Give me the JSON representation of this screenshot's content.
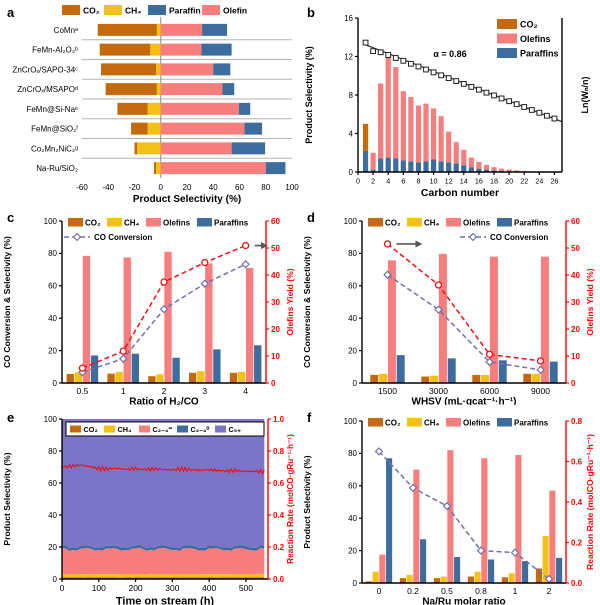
{
  "colors": {
    "co2": "#C4690E",
    "ch4": "#F3C116",
    "olefins": "#F87D7D",
    "paraffins": "#3D6D9E",
    "c5plus": "#7C74C8",
    "co_conv": "#7070B0",
    "red_line": "#EE1111",
    "axis_red": "#FF0000",
    "separator": "#B3B3B3",
    "zero_line": "#8A8A8A",
    "asf_fit": "#3A3A3A",
    "arrow": "#555555"
  },
  "chart_data": [
    {
      "id": "a",
      "letter": "a",
      "type": "bar",
      "variant": "horizontal-diverging",
      "xlabel": "Product Selectivity (%)",
      "xlim": [
        -60,
        100
      ],
      "xticks": [
        -60,
        -40,
        -20,
        0,
        20,
        40,
        60,
        80,
        100
      ],
      "legend": [
        {
          "label": "CO₂",
          "color": "co2"
        },
        {
          "label": "CH₄",
          "color": "ch4"
        },
        {
          "label": "Paraffin",
          "color": "paraffins"
        },
        {
          "label": "Olefin",
          "color": "olefins"
        }
      ],
      "categories": [
        "CoMnᵃ",
        "FeMn-Al₂O₃ᵇ",
        "ZnCrOₓ/SAPO-34ᶜ",
        "ZnCrOₓ/MSAPOᵈ",
        "FeMn@Si-Naᵉ",
        "FeMn@SiO₂ᶠ",
        "Co₂Mn₂NiC₂ᵍ",
        "Na-Ru/SiO₂"
      ],
      "series": [
        {
          "name": "CO₂",
          "color": "co2",
          "side": "left",
          "values": [
            45,
            38.5,
            42,
            39,
            23,
            12.6,
            2,
            1.5
          ]
        },
        {
          "name": "CH₄",
          "color": "ch4",
          "side": "left",
          "values": [
            3,
            8,
            3.5,
            3,
            10,
            10,
            18,
            3.6
          ]
        },
        {
          "name": "Olefin",
          "color": "olefins",
          "side": "right",
          "values": [
            31.5,
            31,
            40,
            47,
            59.5,
            63.7,
            54,
            80
          ]
        },
        {
          "name": "Paraffin",
          "color": "paraffins",
          "side": "right",
          "values": [
            19,
            23,
            13,
            9,
            8.7,
            13.5,
            25.5,
            15
          ]
        }
      ]
    },
    {
      "id": "b",
      "letter": "b",
      "type": "bar+scatter",
      "xlabel": "Carbon number",
      "ylabel": "Product Selectivity (%)",
      "y2label": "Ln(Wₙ/n)",
      "ylim": [
        0,
        16
      ],
      "yticks": [
        0,
        4,
        8,
        12,
        16
      ],
      "xticks": [
        0,
        2,
        4,
        6,
        8,
        10,
        12,
        14,
        16,
        18,
        20,
        22,
        24,
        26
      ],
      "x": [
        1,
        2,
        3,
        4,
        5,
        6,
        7,
        8,
        9,
        10,
        11,
        12,
        13,
        14,
        15,
        16,
        17,
        18,
        19,
        20,
        21,
        22,
        23,
        24,
        25,
        26
      ],
      "legend": [
        {
          "label": "CO₂",
          "color": "co2"
        },
        {
          "label": "Olefins",
          "color": "olefins"
        },
        {
          "label": "Paraffins",
          "color": "paraffins"
        }
      ],
      "series": [
        {
          "name": "Paraffins",
          "color": "paraffins",
          "values": [
            2.2,
            0.2,
            1.4,
            1.5,
            1.4,
            1.2,
            1.1,
            1.0,
            1.1,
            1.3,
            1.1,
            1.0,
            0.9,
            0.7,
            0.5,
            0.35,
            0.25,
            0.15,
            0.1,
            0.07,
            0.05,
            0.03,
            0.02,
            0.02,
            0.01,
            0.01
          ]
        },
        {
          "name": "Olefins",
          "color": "olefins",
          "values": [
            0,
            1.8,
            7.8,
            10.6,
            9.5,
            7.2,
            6.7,
            5.9,
            6.0,
            5.3,
            4.7,
            3.2,
            2.2,
            1.6,
            1.0,
            0.7,
            0.5,
            0.35,
            0.25,
            0.18,
            0.12,
            0.08,
            0.05,
            0.03,
            0.02,
            0.01
          ]
        },
        {
          "name": "CO₂",
          "color": "co2",
          "values": [
            2.8,
            0,
            0,
            0,
            0,
            0,
            0,
            0,
            0,
            0,
            0,
            0,
            0,
            0,
            0,
            0,
            0,
            0,
            0,
            0,
            0,
            0,
            0,
            0,
            0,
            0
          ]
        }
      ],
      "asf": {
        "label": "α = 0.86",
        "axis_range": [
          -7.4,
          -0.2
        ],
        "ln_values": [
          -1.35,
          -1.75,
          -1.8,
          -1.93,
          -2.07,
          -2.2,
          -2.34,
          -2.47,
          -2.61,
          -2.74,
          -2.88,
          -3.01,
          -3.15,
          -3.28,
          -3.42,
          -3.55,
          -3.69,
          -3.82,
          -3.96,
          -4.09,
          -4.23,
          -4.36,
          -4.5,
          -4.63,
          -4.77,
          -4.9
        ],
        "fit": [
          [
            1,
            -1.45
          ],
          [
            27,
            -5.05
          ]
        ]
      }
    },
    {
      "id": "c",
      "letter": "c",
      "type": "grouped-bar+lines",
      "xlabel": "Ratio of H₂/CO",
      "ylabel": "CO Conversion & Selectivity (%)",
      "y2label": "Olefins Yield (%)",
      "ylim": [
        0,
        100
      ],
      "yticks": [
        0,
        20,
        40,
        60,
        80,
        100
      ],
      "y2lim": [
        0,
        60
      ],
      "y2ticks": [
        0,
        10,
        20,
        30,
        40,
        50,
        60
      ],
      "categories": [
        "0.5",
        "1",
        "2",
        "3",
        "4"
      ],
      "series": [
        {
          "name": "CO₂",
          "color": "co2",
          "values": [
            5.6,
            5.8,
            4.2,
            6.3,
            6.3
          ]
        },
        {
          "name": "CH₄",
          "color": "ch4",
          "values": [
            6.7,
            6.9,
            5.4,
            7.3,
            6.9
          ]
        },
        {
          "name": "Olefins",
          "color": "olefins",
          "values": [
            78.5,
            77.5,
            81,
            73.8,
            71
          ]
        },
        {
          "name": "Paraffins",
          "color": "paraffins",
          "values": [
            17,
            18.1,
            15.6,
            20.8,
            23.3
          ]
        }
      ],
      "lines": [
        {
          "name": "CO Conversion",
          "axis": "left",
          "marker": "diamond",
          "color": "co_conv",
          "values": [
            6.7,
            15,
            45.6,
            61.3,
            73.3
          ]
        },
        {
          "name": "Olefins Yield",
          "axis": "right",
          "marker": "circle",
          "color": "red_line",
          "values": [
            5.5,
            11.8,
            37.4,
            44.6,
            50.9
          ]
        }
      ]
    },
    {
      "id": "d",
      "letter": "d",
      "type": "grouped-bar+lines",
      "xlabel": "WHSV (mL·gcat⁻¹·h⁻¹)",
      "ylabel": "CO Conversion & Selectivity (%)",
      "y2label": "Olefins Yield (%)",
      "ylim": [
        0,
        100
      ],
      "yticks": [
        0,
        20,
        40,
        60,
        80,
        100
      ],
      "y2lim": [
        0,
        60
      ],
      "y2ticks": [
        0,
        10,
        20,
        30,
        40,
        50,
        60
      ],
      "categories": [
        "1500",
        "3000",
        "6000",
        "9000"
      ],
      "series": [
        {
          "name": "CO₂",
          "color": "co2",
          "values": [
            5,
            4,
            5,
            5.7
          ]
        },
        {
          "name": "CH₄",
          "color": "ch4",
          "values": [
            5.7,
            4.5,
            5,
            5.7
          ]
        },
        {
          "name": "Olefins",
          "color": "olefins",
          "values": [
            75.7,
            79.7,
            78,
            78
          ]
        },
        {
          "name": "Paraffins",
          "color": "paraffins",
          "values": [
            17.2,
            15.2,
            14,
            13.2
          ]
        }
      ],
      "lines": [
        {
          "name": "CO Conversion",
          "axis": "left",
          "marker": "diamond",
          "color": "co_conv",
          "values": [
            66.8,
            45.3,
            13,
            8.1
          ]
        },
        {
          "name": "Olefins Yield",
          "axis": "right",
          "marker": "circle",
          "color": "red_line",
          "values": [
            51.5,
            36.3,
            10.6,
            8.2
          ]
        }
      ]
    },
    {
      "id": "e",
      "letter": "e",
      "type": "area",
      "xlabel": "Time on stream (h)",
      "ylabel": "Product Selectivity (%)",
      "y2label": "Reaction Rate (molCO·gRu⁻¹·h⁻¹)",
      "xlim": [
        0,
        560
      ],
      "xticks": [
        0,
        100,
        200,
        300,
        400,
        500
      ],
      "ylim": [
        0,
        100
      ],
      "yticks": [
        0,
        20,
        40,
        60,
        80,
        100
      ],
      "y2lim": [
        0,
        1.0
      ],
      "y2ticks": [
        "0.0",
        "0.2",
        "0.4",
        "0.6",
        "0.8",
        "1.0"
      ],
      "legend": [
        {
          "label": "CO₂",
          "color": "co2"
        },
        {
          "label": "CH₄",
          "color": "ch4"
        },
        {
          "label": "C₂₋₄⁼",
          "color": "olefins"
        },
        {
          "label": "C₂₋₄⁰",
          "color": "paraffins"
        },
        {
          "label": "C₅₊",
          "color": "c5plus"
        }
      ],
      "mean_selectivity": {
        "co2": 1.0,
        "ch4": 2.0,
        "c24_olefins": 15.5,
        "c24_paraffins": 1.8,
        "c5plus": 79.7
      },
      "rate_time_h": [
        0,
        25,
        50,
        75,
        100,
        125,
        150,
        175,
        200,
        225,
        250,
        275,
        300,
        325,
        350,
        375,
        400,
        425,
        450,
        475,
        500,
        525,
        550
      ],
      "rate_values": [
        0.7,
        0.705,
        0.712,
        0.703,
        0.69,
        0.688,
        0.692,
        0.685,
        0.69,
        0.684,
        0.688,
        0.685,
        0.682,
        0.688,
        0.683,
        0.68,
        0.683,
        0.678,
        0.675,
        0.678,
        0.672,
        0.674,
        0.671
      ]
    },
    {
      "id": "f",
      "letter": "f",
      "type": "grouped-bar+lines",
      "xlabel": "Na/Ru molar ratio",
      "ylabel": "Product Selectivity (%)",
      "y2label": "Reaction Rate (molCO·gRu⁻¹·h⁻¹)",
      "ylim": [
        0,
        100
      ],
      "yticks": [
        0,
        20,
        40,
        60,
        80,
        100
      ],
      "y2lim": [
        0,
        0.8
      ],
      "y2ticks": [
        "0.0",
        "0.2",
        "0.4",
        "0.6",
        "0.8"
      ],
      "categories": [
        "0",
        "0.2",
        "0.5",
        "0.8",
        "1",
        "2"
      ],
      "series": [
        {
          "name": "CO₂",
          "color": "co2",
          "values": [
            1,
            3,
            3,
            4,
            3.5,
            9
          ]
        },
        {
          "name": "CH₄",
          "color": "ch4",
          "values": [
            7,
            5,
            4,
            7,
            6,
            29
          ]
        },
        {
          "name": "Olefins",
          "color": "olefins",
          "values": [
            17.5,
            70,
            82,
            77,
            79,
            57
          ]
        },
        {
          "name": "Paraffins",
          "color": "paraffins",
          "values": [
            77,
            27,
            16,
            14.5,
            13.5,
            15.5
          ]
        }
      ],
      "lines": [
        {
          "name": "Reaction Rate",
          "axis": "right",
          "marker": "diamond",
          "color": "co_conv",
          "values": [
            0.65,
            0.47,
            0.38,
            0.16,
            0.15,
            0.02
          ]
        }
      ]
    }
  ]
}
